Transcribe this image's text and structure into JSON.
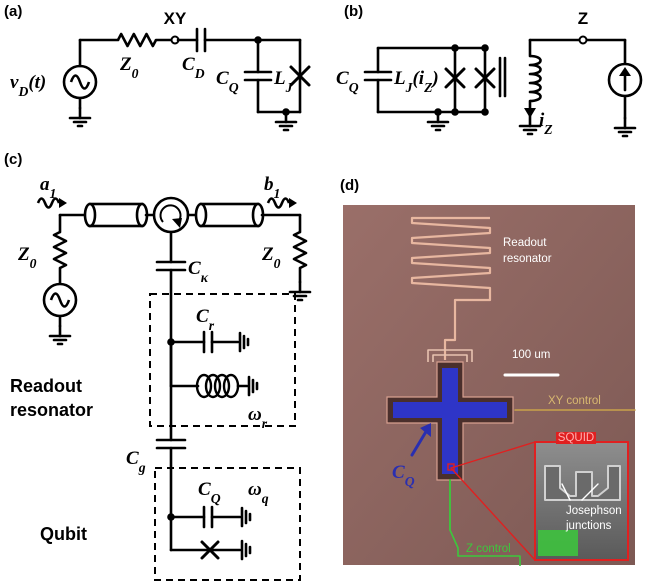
{
  "panel_a": {
    "label": "(a)",
    "xy": "XY",
    "source": {
      "main": "v",
      "sub": "D",
      "suffix": "(t)"
    },
    "z0": {
      "main": "Z",
      "sub": "0"
    },
    "cd": {
      "main": "C",
      "sub": "D"
    },
    "cq": {
      "main": "C",
      "sub": "Q"
    },
    "lj": {
      "main": "L",
      "sub": "J"
    }
  },
  "panel_b": {
    "label": "(b)",
    "z": "Z",
    "cq": {
      "main": "C",
      "sub": "Q"
    },
    "lj": {
      "main": "L",
      "sub": "J",
      "suffix": "(i",
      "sub2": "Z",
      "suffix2": ")"
    },
    "iz": {
      "main": "i",
      "sub": "Z"
    }
  },
  "panel_c": {
    "label": "(c)",
    "a1": {
      "main": "a",
      "sub": "1"
    },
    "b1": {
      "main": "b",
      "sub": "1"
    },
    "z0_left": {
      "main": "Z",
      "sub": "0"
    },
    "z0_right": {
      "main": "Z",
      "sub": "0"
    },
    "ck": {
      "main": "C",
      "sub": "κ"
    },
    "cr": {
      "main": "C",
      "sub": "r"
    },
    "readout": [
      "Readout",
      "resonator"
    ],
    "wr": {
      "main": "ω",
      "sub": "r"
    },
    "cg": {
      "main": "C",
      "sub": "g"
    },
    "cq": {
      "main": "C",
      "sub": "Q"
    },
    "wq": {
      "main": "ω",
      "sub": "q"
    },
    "qubit": "Qubit"
  },
  "panel_d": {
    "label": "(d)",
    "readout": [
      "Readout",
      "resonator"
    ],
    "scale": "100 um",
    "xy_control": "XY control",
    "cq": {
      "main": "C",
      "sub": "Q"
    },
    "squid": "SQUID",
    "junctions": [
      "Josephson",
      "junctions"
    ],
    "z_control": "Z control"
  }
}
